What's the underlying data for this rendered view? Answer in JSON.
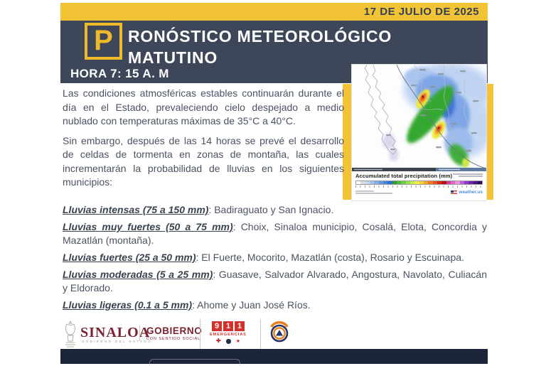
{
  "colors": {
    "gold": "#f2c435",
    "gold_border": "#ecba2a",
    "navy_header": "#3e4759",
    "navy_dark": "#1c2539",
    "navy_text": "#333f57",
    "body_text": "#4a5263",
    "maroon": "#7b2130",
    "red_911": "#d4312c"
  },
  "header": {
    "date": "17 DE JULIO DE 2025",
    "logo_letter": "P",
    "title_rest": "RONÓSTICO METEOROLÓGICO",
    "title_line2": "MATUTINO",
    "time": "HORA 7: 15 A. M"
  },
  "forecast": {
    "paragraph1": "Las condiciones atmosféricas estables continuarán durante el día en el Estado, prevaleciendo cielo despejado a medio nublado con temperaturas máximas de 35°C a 40°C.",
    "paragraph2": "Sin embargo, después de las 14 horas se prevé el desarrollo de celdas de tormenta en zonas de montaña, las cuales incrementarán la probabilidad de lluvias en los siguientes municipios:",
    "rain_levels": [
      {
        "label": "Lluvias intensas (75 a 150 mm)",
        "rest": ": Badiraguato y San Ignacio."
      },
      {
        "label": "Lluvias muy fuertes (50 a 75 mm)",
        "rest": ": Choix, Sinaloa municipio, Cosalá, Elota, Concordia y Mazatlán (montaña)."
      },
      {
        "label": "Lluvias fuertes (25 a 50 mm)",
        "rest": ": El Fuerte, Mocorito, Mazatlán (costa), Rosario y Escuinapa."
      },
      {
        "label": "Lluvias moderadas (5 a 25 mm)",
        "rest": ": Guasave, Salvador Alvarado, Angostura, Navolato, Culiacán y Eldorado."
      },
      {
        "label": "Lluvias ligeras (0.1 a 5 mm)",
        "rest": ": Ahome y Juan José Ríos."
      }
    ]
  },
  "map": {
    "legend_title": "Accumulated total precipitation (mm)",
    "watermark": "weather.us",
    "scale_colors": [
      "#ffffff",
      "#dcdcdc",
      "#c3d8f5",
      "#a5c4f0",
      "#86b0ea",
      "#659ae3",
      "#4585dc",
      "#2a6fd2",
      "#2f9e33",
      "#46ba3a",
      "#6ccf43",
      "#9be04c",
      "#c9ec54",
      "#f2ee4a",
      "#f5cf3c",
      "#f5a52f",
      "#f07c22",
      "#e65317",
      "#d3290e",
      "#b5120b",
      "#c93f9e",
      "#de68bd",
      "#f092dc",
      "#b95fe0",
      "#9138d1",
      "#6b22ad",
      "#4a1583",
      "#2e0a5c"
    ]
  },
  "footer": {
    "sinaloa": {
      "name": "SINALOA",
      "sub": "GOBIERNO DEL ESTADO",
      "slogan": "GOBIERNO",
      "slogan_sub": "CON SENTIDO SOCIAL"
    },
    "emergency": {
      "digits": [
        "9",
        "1",
        "1"
      ],
      "label": "EMERGENCIAS"
    }
  }
}
